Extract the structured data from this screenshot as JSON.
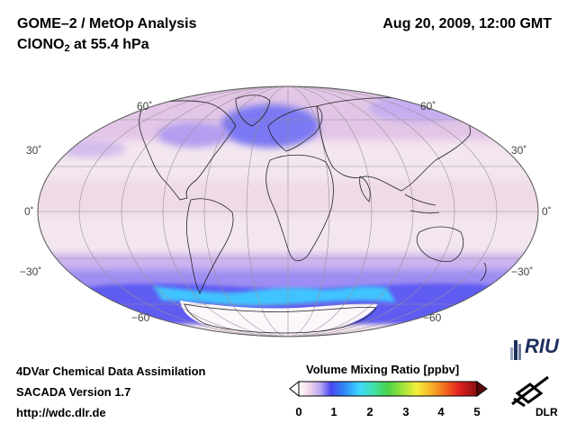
{
  "header": {
    "title": "GOME–2 / MetOp Analysis",
    "species": "ClONO",
    "species_sub": "2",
    "level": " at 55.4 hPa",
    "datetime": "Aug 20, 2009, 12:00 GMT"
  },
  "map": {
    "projection": "Mollweide",
    "lat_labels_left": [
      "60˚",
      "30˚",
      "0˚",
      "−30˚",
      "−60"
    ],
    "lat_labels_right": [
      "60˚",
      "30˚",
      "0˚",
      "−30˚",
      "−60"
    ],
    "colors": {
      "background_low": "#f6e8ee",
      "pink": "#ead0e4",
      "violet": "#b7a6f2",
      "blue": "#5a58f0",
      "cyan": "#44c6ff",
      "antarctic": "#ffffff"
    }
  },
  "credits": {
    "line1": "4DVar Chemical Data Assimilation",
    "line2": "SACADA Version 1.7",
    "line3": "http://wdc.dlr.de"
  },
  "colorbar": {
    "title": "Volume Mixing Ratio [ppbv]",
    "ticks": [
      "0",
      "1",
      "2",
      "3",
      "4",
      "5"
    ],
    "min": 0,
    "max": 5
  },
  "logos": {
    "riu": "RIU",
    "dlr": "DLR"
  }
}
